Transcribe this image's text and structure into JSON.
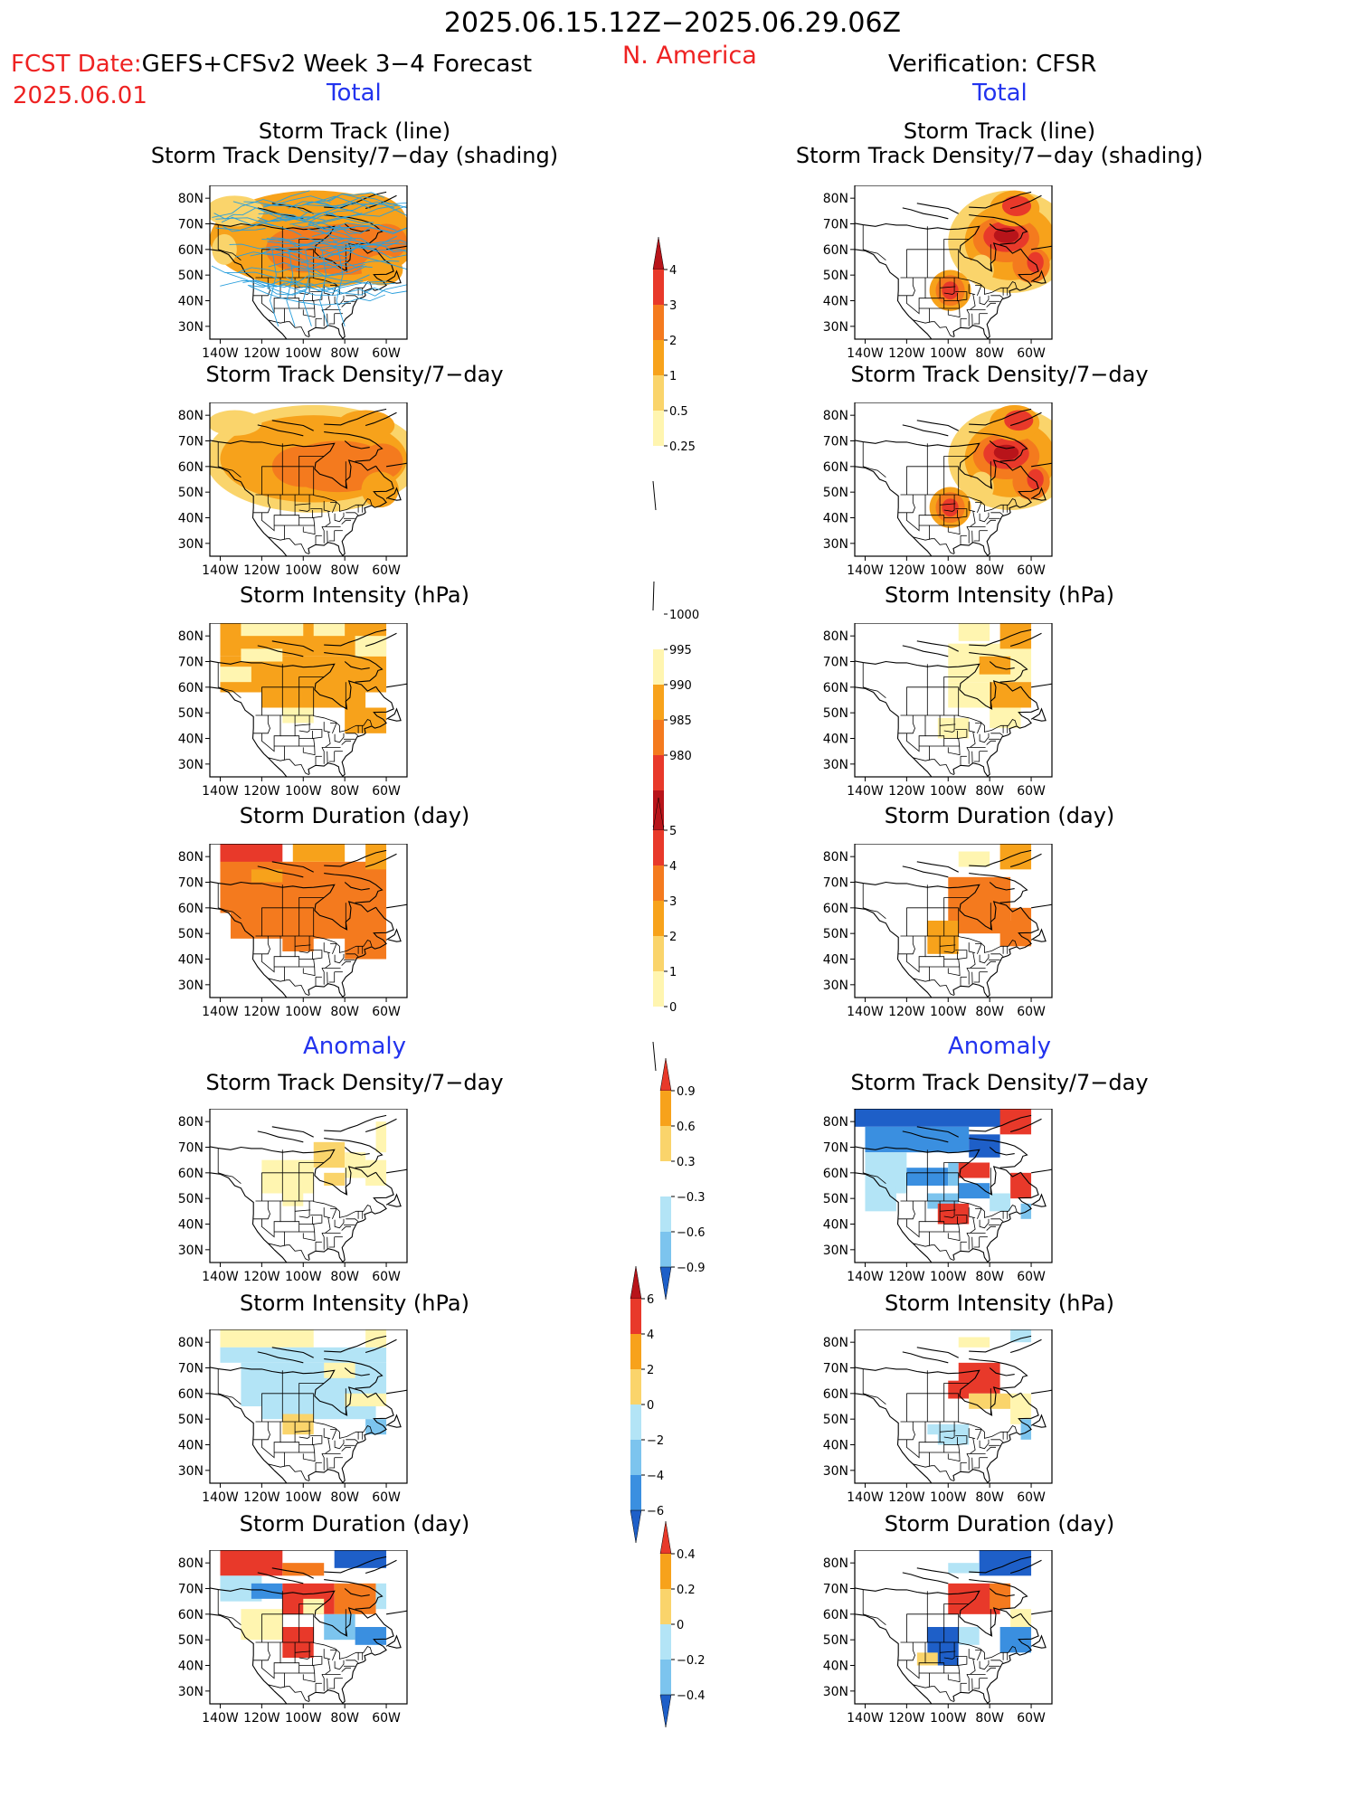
{
  "header": {
    "period": "2025.06.15.12Z−2025.06.29.06Z",
    "region": "N. America",
    "fcst_label": "FCST Date:",
    "fcst_model": "GEFS+CFSv2 Week 3−4 Forecast",
    "fcst_date": "2025.06.01",
    "verification": "Verification: CFSR",
    "total_left": "Total",
    "total_right": "Total",
    "anomaly_left": "Anomaly",
    "anomaly_right": "Anomaly"
  },
  "titles": {
    "track_l1": "Storm Track (line)",
    "track_l2": "Storm Track Density/7−day (shading)",
    "density": "Storm Track Density/7−day",
    "intensity": "Storm Intensity (hPa)",
    "duration": "Storm Duration (day)"
  },
  "axes": {
    "lat": [
      "80N",
      "70N",
      "60N",
      "50N",
      "40N",
      "30N"
    ],
    "lon": [
      "140W",
      "120W",
      "100W",
      "80W",
      "60W"
    ]
  },
  "colorbars": {
    "density_total": [
      "4",
      "3",
      "2",
      "1",
      "0.5",
      "0.25"
    ],
    "intensity_total": [
      "1000",
      "995",
      "990",
      "985",
      "980"
    ],
    "duration_total": [
      "5",
      "4",
      "3",
      "2",
      "1",
      "0"
    ],
    "density_anom": [
      "0.9",
      "0.6",
      "0.3",
      "−0.3",
      "−0.6",
      "−0.9"
    ],
    "intensity_anom": [
      "6",
      "4",
      "2",
      "0",
      "−2",
      "−4",
      "−6"
    ],
    "duration_anom": [
      "0.4",
      "0.2",
      "0",
      "−0.2",
      "−0.4"
    ]
  },
  "colors": {
    "pale_yellow": "#fff5b0",
    "yellow": "#fad46b",
    "orange": "#f7a21b",
    "dark_orange": "#f47a1e",
    "red": "#e8392a",
    "dark_red": "#b8141a",
    "light_blue": "#b3e4f6",
    "mid_blue": "#7cc4ee",
    "blue": "#3a8fe0",
    "dark_blue": "#1e5fc8",
    "track_line": "#2a9fdc"
  }
}
